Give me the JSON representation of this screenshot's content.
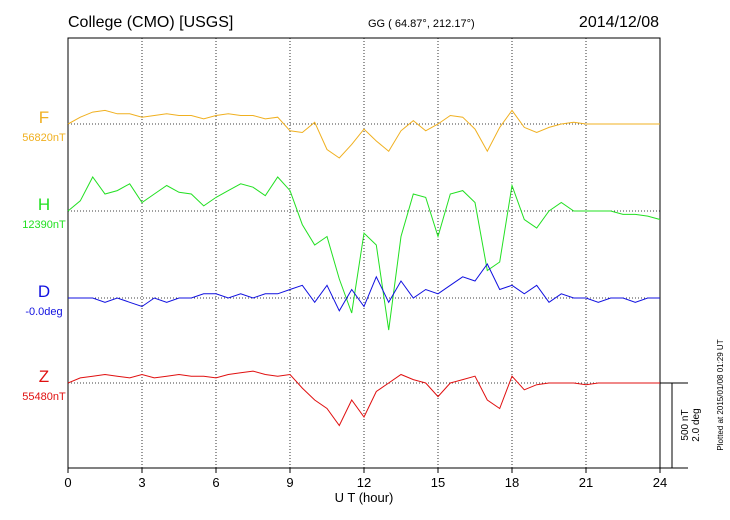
{
  "header": {
    "station": "College (CMO)  [USGS]",
    "coords": "GG ( 64.87°, 212.17°)",
    "date": "2014/12/08"
  },
  "side_note": "Plotted at 2015/01/08 01:29 UT",
  "scale_bar": {
    "nt": "500 nT",
    "deg": "2.0 deg"
  },
  "chart_data": {
    "type": "line",
    "title": "",
    "xlabel": "U T (hour)",
    "xlim": [
      0,
      24
    ],
    "xticks": [
      "0",
      "3",
      "6",
      "9",
      "12",
      "15",
      "18",
      "21",
      "24"
    ],
    "grid": true,
    "channels": [
      {
        "name": "F",
        "baseline_label": "56820nT",
        "color": "#f0b020",
        "x": [
          0,
          0.5,
          1,
          1.5,
          2,
          2.5,
          3,
          3.5,
          4,
          4.5,
          5,
          5.5,
          6,
          6.5,
          7,
          7.5,
          8,
          8.5,
          9,
          9.5,
          10,
          10.5,
          11,
          11.5,
          12,
          12.5,
          13,
          13.5,
          14,
          14.5,
          15,
          15.5,
          16,
          16.5,
          17,
          17.5,
          18,
          18.5,
          19,
          19.5,
          20,
          20.5,
          21,
          21.5,
          22,
          22.5,
          23,
          23.5,
          24
        ],
        "values": [
          0,
          40,
          70,
          80,
          60,
          60,
          40,
          50,
          60,
          50,
          50,
          30,
          50,
          60,
          50,
          50,
          30,
          40,
          -40,
          -50,
          10,
          -150,
          -200,
          -120,
          -30,
          -100,
          -160,
          -40,
          20,
          -40,
          0,
          50,
          40,
          -30,
          -160,
          -20,
          80,
          -20,
          -50,
          -20,
          0,
          10,
          0,
          0,
          0,
          0,
          0,
          0,
          0
        ]
      },
      {
        "name": "H",
        "baseline_label": "12390nT",
        "color": "#22e022",
        "x": [
          0,
          0.5,
          1,
          1.5,
          2,
          2.5,
          3,
          3.5,
          4,
          4.5,
          5,
          5.5,
          6,
          6.5,
          7,
          7.5,
          8,
          8.5,
          9,
          9.5,
          10,
          10.5,
          11,
          11.5,
          12,
          12.5,
          13,
          13.5,
          14,
          14.5,
          15,
          15.5,
          16,
          16.5,
          17,
          17.5,
          18,
          18.5,
          19,
          19.5,
          20,
          20.5,
          21,
          21.5,
          22,
          22.5,
          23,
          23.5,
          24
        ],
        "values": [
          0,
          60,
          200,
          100,
          120,
          160,
          50,
          100,
          150,
          110,
          100,
          30,
          80,
          120,
          160,
          140,
          90,
          200,
          120,
          -80,
          -200,
          -150,
          -400,
          -600,
          -130,
          -200,
          -700,
          -150,
          100,
          80,
          -150,
          100,
          120,
          50,
          -350,
          -300,
          150,
          -50,
          -100,
          0,
          50,
          0,
          0,
          0,
          0,
          -20,
          -20,
          -30,
          -50
        ]
      },
      {
        "name": "D",
        "baseline_label": "-0.0deg",
        "color": "#1010e0",
        "x": [
          0,
          0.5,
          1,
          1.5,
          2,
          2.5,
          3,
          3.5,
          4,
          4.5,
          5,
          5.5,
          6,
          6.5,
          7,
          7.5,
          8,
          8.5,
          9,
          9.5,
          10,
          10.5,
          11,
          11.5,
          12,
          12.5,
          13,
          13.5,
          14,
          14.5,
          15,
          15.5,
          16,
          16.5,
          17,
          17.5,
          18,
          18.5,
          19,
          19.5,
          20,
          20.5,
          21,
          21.5,
          22,
          22.5,
          23,
          23.5,
          24
        ],
        "values": [
          0,
          0,
          0,
          -0.1,
          0,
          -0.1,
          -0.2,
          0,
          -0.1,
          0,
          0,
          0.1,
          0.1,
          0,
          0.1,
          0,
          0.1,
          0.1,
          0.2,
          0.3,
          -0.1,
          0.3,
          -0.3,
          0.2,
          -0.2,
          0.5,
          -0.1,
          0.4,
          0,
          0.2,
          0.1,
          0.3,
          0.5,
          0.4,
          0.8,
          0.2,
          0.3,
          0.1,
          0.3,
          -0.1,
          0.1,
          0,
          0,
          -0.1,
          0,
          0,
          -0.1,
          0,
          0
        ]
      },
      {
        "name": "Z",
        "baseline_label": "55480nT",
        "color": "#e01010",
        "x": [
          0,
          0.5,
          1,
          1.5,
          2,
          2.5,
          3,
          3.5,
          4,
          4.5,
          5,
          5.5,
          6,
          6.5,
          7,
          7.5,
          8,
          8.5,
          9,
          9.5,
          10,
          10.5,
          11,
          11.5,
          12,
          12.5,
          13,
          13.5,
          14,
          14.5,
          15,
          15.5,
          16,
          16.5,
          17,
          17.5,
          18,
          18.5,
          19,
          19.5,
          20,
          20.5,
          21,
          21.5,
          22,
          22.5,
          23,
          23.5,
          24
        ],
        "values": [
          0,
          30,
          40,
          50,
          40,
          30,
          50,
          30,
          40,
          50,
          40,
          40,
          30,
          50,
          60,
          70,
          50,
          40,
          50,
          -30,
          -100,
          -150,
          -250,
          -100,
          -200,
          -50,
          0,
          50,
          20,
          0,
          -80,
          0,
          20,
          40,
          -100,
          -150,
          40,
          -40,
          -10,
          0,
          0,
          0,
          -10,
          0,
          0,
          0,
          0,
          0,
          0
        ]
      }
    ]
  }
}
